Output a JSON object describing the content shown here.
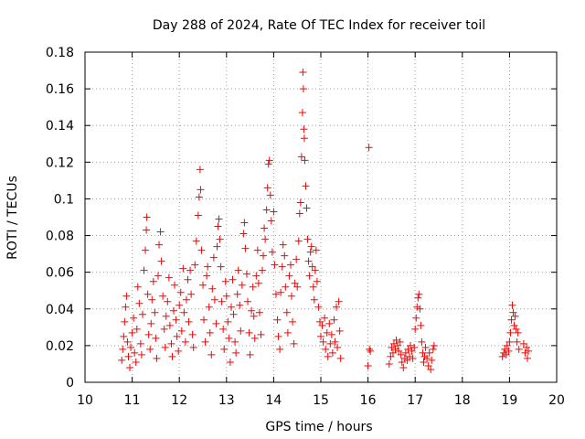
{
  "chart_data": {
    "type": "scatter",
    "title": "Day 288 of 2024, Rate Of TEC Index for receiver toil",
    "xlabel": "GPS time / hours",
    "ylabel": "ROTI / TECUs",
    "xlim": [
      10,
      20
    ],
    "ylim": [
      0,
      0.18
    ],
    "x_ticks": [
      "10",
      "11",
      "12",
      "13",
      "14",
      "15",
      "16",
      "17",
      "18",
      "19",
      "20"
    ],
    "y_ticks": [
      "0",
      "0.02",
      "0.04",
      "0.06",
      "0.08",
      "0.1",
      "0.12",
      "0.14",
      "0.16",
      "0.18"
    ],
    "grid": true,
    "marker": "+",
    "color": "#ff0000",
    "series": [
      {
        "name": "ROTI",
        "points": [
          [
            10.78,
            0.012
          ],
          [
            10.8,
            0.018
          ],
          [
            10.82,
            0.025
          ],
          [
            10.84,
            0.033
          ],
          [
            10.86,
            0.041
          ],
          [
            10.88,
            0.047
          ],
          [
            10.9,
            0.022
          ],
          [
            10.92,
            0.014
          ],
          [
            10.95,
            0.008
          ],
          [
            10.97,
            0.019
          ],
          [
            11.0,
            0.027
          ],
          [
            11.03,
            0.035
          ],
          [
            11.05,
            0.016
          ],
          [
            11.08,
            0.011
          ],
          [
            11.1,
            0.029
          ],
          [
            11.12,
            0.052
          ],
          [
            11.15,
            0.043
          ],
          [
            11.18,
            0.021
          ],
          [
            11.2,
            0.015
          ],
          [
            11.22,
            0.037
          ],
          [
            11.25,
            0.061
          ],
          [
            11.28,
            0.072
          ],
          [
            11.3,
            0.083
          ],
          [
            11.31,
            0.09
          ],
          [
            11.33,
            0.048
          ],
          [
            11.35,
            0.026
          ],
          [
            11.38,
            0.018
          ],
          [
            11.4,
            0.032
          ],
          [
            11.42,
            0.045
          ],
          [
            11.45,
            0.055
          ],
          [
            11.48,
            0.038
          ],
          [
            11.5,
            0.024
          ],
          [
            11.52,
            0.013
          ],
          [
            11.55,
            0.058
          ],
          [
            11.57,
            0.075
          ],
          [
            11.6,
            0.082
          ],
          [
            11.62,
            0.066
          ],
          [
            11.65,
            0.047
          ],
          [
            11.68,
            0.029
          ],
          [
            11.7,
            0.019
          ],
          [
            11.72,
            0.036
          ],
          [
            11.75,
            0.044
          ],
          [
            11.78,
            0.057
          ],
          [
            11.8,
            0.031
          ],
          [
            11.83,
            0.021
          ],
          [
            11.85,
            0.014
          ],
          [
            11.88,
            0.039
          ],
          [
            11.9,
            0.053
          ],
          [
            11.93,
            0.034
          ],
          [
            11.95,
            0.025
          ],
          [
            11.98,
            0.017
          ],
          [
            12.0,
            0.042
          ],
          [
            12.03,
            0.049
          ],
          [
            12.05,
            0.028
          ],
          [
            12.08,
            0.062
          ],
          [
            12.1,
            0.038
          ],
          [
            12.13,
            0.022
          ],
          [
            12.15,
            0.045
          ],
          [
            12.18,
            0.056
          ],
          [
            12.2,
            0.033
          ],
          [
            12.23,
            0.061
          ],
          [
            12.25,
            0.048
          ],
          [
            12.28,
            0.026
          ],
          [
            12.3,
            0.019
          ],
          [
            12.33,
            0.064
          ],
          [
            12.36,
            0.077
          ],
          [
            12.4,
            0.091
          ],
          [
            12.42,
            0.101
          ],
          [
            12.44,
            0.116
          ],
          [
            12.45,
            0.105
          ],
          [
            12.47,
            0.072
          ],
          [
            12.5,
            0.053
          ],
          [
            12.52,
            0.034
          ],
          [
            12.55,
            0.022
          ],
          [
            12.58,
            0.058
          ],
          [
            12.6,
            0.063
          ],
          [
            12.63,
            0.041
          ],
          [
            12.65,
            0.027
          ],
          [
            12.68,
            0.015
          ],
          [
            12.7,
            0.051
          ],
          [
            12.73,
            0.068
          ],
          [
            12.75,
            0.045
          ],
          [
            12.78,
            0.032
          ],
          [
            12.8,
            0.074
          ],
          [
            12.82,
            0.085
          ],
          [
            12.84,
            0.089
          ],
          [
            12.86,
            0.078
          ],
          [
            12.88,
            0.063
          ],
          [
            12.9,
            0.044
          ],
          [
            12.93,
            0.029
          ],
          [
            12.95,
            0.018
          ],
          [
            12.98,
            0.055
          ],
          [
            13.0,
            0.047
          ],
          [
            13.03,
            0.033
          ],
          [
            13.05,
            0.024
          ],
          [
            13.08,
            0.011
          ],
          [
            13.1,
            0.041
          ],
          [
            13.13,
            0.056
          ],
          [
            13.15,
            0.037
          ],
          [
            13.18,
            0.022
          ],
          [
            13.2,
            0.016
          ],
          [
            13.23,
            0.048
          ],
          [
            13.25,
            0.061
          ],
          [
            13.28,
            0.042
          ],
          [
            13.3,
            0.028
          ],
          [
            13.33,
            0.053
          ],
          [
            13.36,
            0.081
          ],
          [
            13.38,
            0.087
          ],
          [
            13.4,
            0.073
          ],
          [
            13.43,
            0.059
          ],
          [
            13.45,
            0.044
          ],
          [
            13.48,
            0.027
          ],
          [
            13.5,
            0.015
          ],
          [
            13.53,
            0.039
          ],
          [
            13.56,
            0.052
          ],
          [
            13.58,
            0.036
          ],
          [
            13.6,
            0.024
          ],
          [
            13.63,
            0.058
          ],
          [
            13.66,
            0.072
          ],
          [
            13.68,
            0.054
          ],
          [
            13.7,
            0.038
          ],
          [
            13.73,
            0.026
          ],
          [
            13.76,
            0.061
          ],
          [
            13.78,
            0.069
          ],
          [
            13.8,
            0.084
          ],
          [
            13.82,
            0.078
          ],
          [
            13.85,
            0.094
          ],
          [
            13.87,
            0.106
          ],
          [
            13.89,
            0.119
          ],
          [
            13.91,
            0.121
          ],
          [
            13.93,
            0.102
          ],
          [
            13.95,
            0.088
          ],
          [
            13.97,
            0.071
          ],
          [
            14.0,
            0.093
          ],
          [
            14.02,
            0.064
          ],
          [
            14.05,
            0.048
          ],
          [
            14.08,
            0.034
          ],
          [
            14.1,
            0.025
          ],
          [
            14.13,
            0.018
          ],
          [
            14.15,
            0.049
          ],
          [
            14.18,
            0.063
          ],
          [
            14.2,
            0.075
          ],
          [
            14.23,
            0.069
          ],
          [
            14.25,
            0.052
          ],
          [
            14.28,
            0.038
          ],
          [
            14.3,
            0.027
          ],
          [
            14.33,
            0.058
          ],
          [
            14.36,
            0.064
          ],
          [
            14.38,
            0.047
          ],
          [
            14.4,
            0.033
          ],
          [
            14.43,
            0.021
          ],
          [
            14.45,
            0.054
          ],
          [
            14.48,
            0.067
          ],
          [
            14.5,
            0.052
          ],
          [
            14.53,
            0.077
          ],
          [
            14.55,
            0.092
          ],
          [
            14.57,
            0.098
          ],
          [
            14.59,
            0.123
          ],
          [
            14.61,
            0.147
          ],
          [
            14.62,
            0.169
          ],
          [
            14.63,
            0.16
          ],
          [
            14.64,
            0.138
          ],
          [
            14.65,
            0.133
          ],
          [
            14.66,
            0.121
          ],
          [
            14.68,
            0.107
          ],
          [
            14.7,
            0.095
          ],
          [
            14.72,
            0.078
          ],
          [
            14.74,
            0.066
          ],
          [
            14.76,
            0.058
          ],
          [
            14.78,
            0.071
          ],
          [
            14.8,
            0.074
          ],
          [
            14.82,
            0.063
          ],
          [
            14.84,
            0.052
          ],
          [
            14.86,
            0.045
          ],
          [
            14.88,
            0.061
          ],
          [
            14.9,
            0.072
          ],
          [
            14.92,
            0.055
          ],
          [
            14.95,
            0.041
          ],
          [
            14.98,
            0.033
          ],
          [
            15.0,
            0.025
          ],
          [
            15.03,
            0.031
          ],
          [
            15.05,
            0.022
          ],
          [
            15.08,
            0.035
          ],
          [
            15.1,
            0.018
          ],
          [
            15.13,
            0.027
          ],
          [
            15.15,
            0.014
          ],
          [
            15.18,
            0.032
          ],
          [
            15.2,
            0.021
          ],
          [
            15.23,
            0.026
          ],
          [
            15.25,
            0.016
          ],
          [
            15.28,
            0.034
          ],
          [
            15.3,
            0.022
          ],
          [
            15.33,
            0.041
          ],
          [
            15.35,
            0.019
          ],
          [
            15.38,
            0.044
          ],
          [
            15.4,
            0.028
          ],
          [
            15.42,
            0.013
          ],
          [
            16.0,
            0.009
          ],
          [
            16.02,
            0.128
          ],
          [
            16.03,
            0.018
          ],
          [
            16.05,
            0.017
          ],
          [
            16.45,
            0.01
          ],
          [
            16.48,
            0.014
          ],
          [
            16.5,
            0.019
          ],
          [
            16.53,
            0.016
          ],
          [
            16.55,
            0.021
          ],
          [
            16.58,
            0.018
          ],
          [
            16.6,
            0.023
          ],
          [
            16.63,
            0.02
          ],
          [
            16.65,
            0.017
          ],
          [
            16.68,
            0.022
          ],
          [
            16.7,
            0.015
          ],
          [
            16.72,
            0.011
          ],
          [
            16.75,
            0.008
          ],
          [
            16.78,
            0.013
          ],
          [
            16.8,
            0.016
          ],
          [
            16.83,
            0.012
          ],
          [
            16.85,
            0.018
          ],
          [
            16.88,
            0.014
          ],
          [
            16.9,
            0.02
          ],
          [
            16.93,
            0.017
          ],
          [
            16.95,
            0.013
          ],
          [
            16.98,
            0.019
          ],
          [
            17.0,
            0.029
          ],
          [
            17.02,
            0.035
          ],
          [
            17.04,
            0.041
          ],
          [
            17.06,
            0.046
          ],
          [
            17.08,
            0.048
          ],
          [
            17.1,
            0.04
          ],
          [
            17.12,
            0.031
          ],
          [
            17.14,
            0.022
          ],
          [
            17.16,
            0.016
          ],
          [
            17.18,
            0.011
          ],
          [
            17.2,
            0.014
          ],
          [
            17.22,
            0.019
          ],
          [
            17.25,
            0.013
          ],
          [
            17.28,
            0.009
          ],
          [
            17.3,
            0.016
          ],
          [
            17.33,
            0.007
          ],
          [
            17.35,
            0.012
          ],
          [
            17.38,
            0.018
          ],
          [
            17.4,
            0.02
          ],
          [
            18.85,
            0.014
          ],
          [
            18.88,
            0.016
          ],
          [
            18.9,
            0.018
          ],
          [
            18.93,
            0.015
          ],
          [
            18.95,
            0.02
          ],
          [
            18.98,
            0.017
          ],
          [
            19.0,
            0.022
          ],
          [
            19.02,
            0.027
          ],
          [
            19.04,
            0.034
          ],
          [
            19.06,
            0.042
          ],
          [
            19.08,
            0.038
          ],
          [
            19.1,
            0.031
          ],
          [
            19.12,
            0.036
          ],
          [
            19.14,
            0.029
          ],
          [
            19.16,
            0.022
          ],
          [
            19.18,
            0.027
          ],
          [
            19.2,
            0.018
          ],
          [
            19.3,
            0.021
          ],
          [
            19.33,
            0.016
          ],
          [
            19.36,
            0.019
          ],
          [
            19.38,
            0.013
          ],
          [
            19.4,
            0.017
          ]
        ]
      }
    ]
  }
}
